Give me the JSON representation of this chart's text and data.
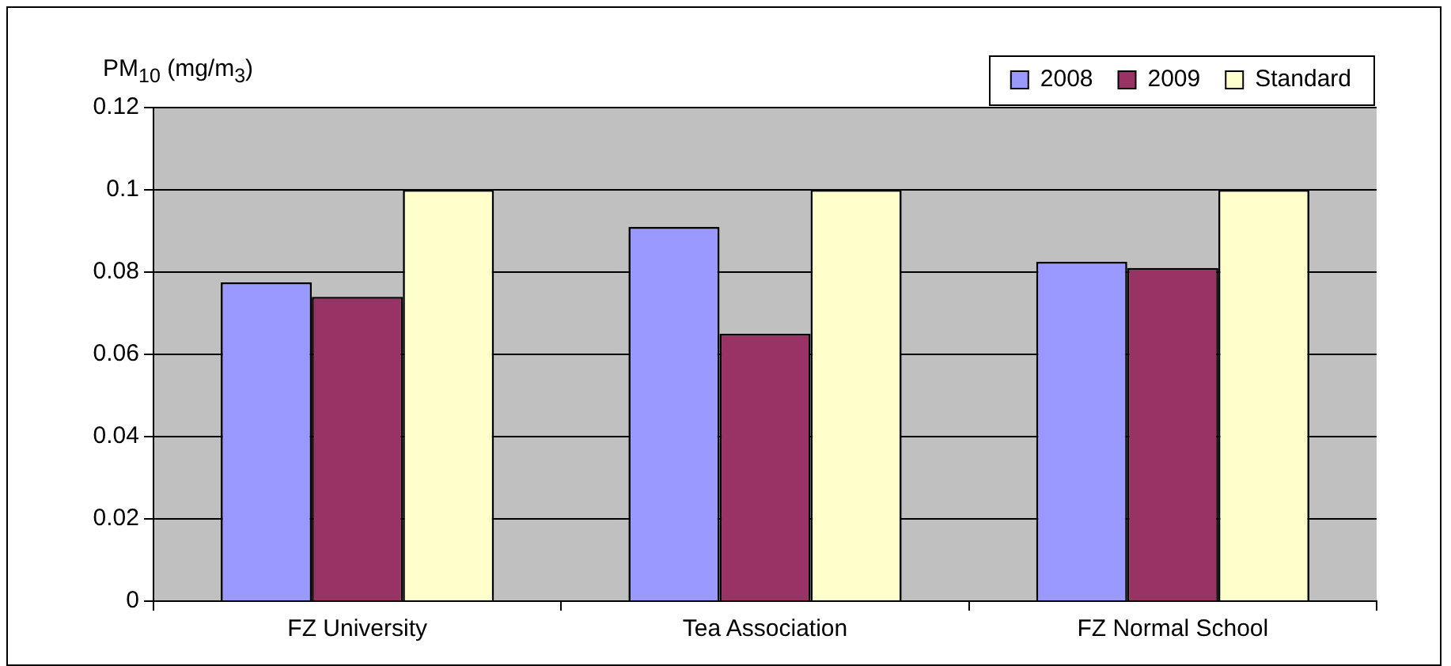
{
  "chart_data": {
    "type": "bar",
    "ylabel": "PM$_{10}$ (mg/m$_{3}$)",
    "categories": [
      "FZ University",
      "Tea Association",
      "FZ Normal School"
    ],
    "series": [
      {
        "name": "2008",
        "color": "#9999ff",
        "values": [
          0.0775,
          0.091,
          0.0825
        ]
      },
      {
        "name": "2009",
        "color": "#993366",
        "values": [
          0.074,
          0.065,
          0.081
        ]
      },
      {
        "name": "Standard",
        "color": "#ffffcc",
        "values": [
          0.1,
          0.1,
          0.1
        ]
      }
    ],
    "ylim": [
      0,
      0.12
    ],
    "yticks": [
      0,
      0.02,
      0.04,
      0.06,
      0.08,
      0.1,
      0.12
    ],
    "grid": "y",
    "legend": "top right"
  }
}
